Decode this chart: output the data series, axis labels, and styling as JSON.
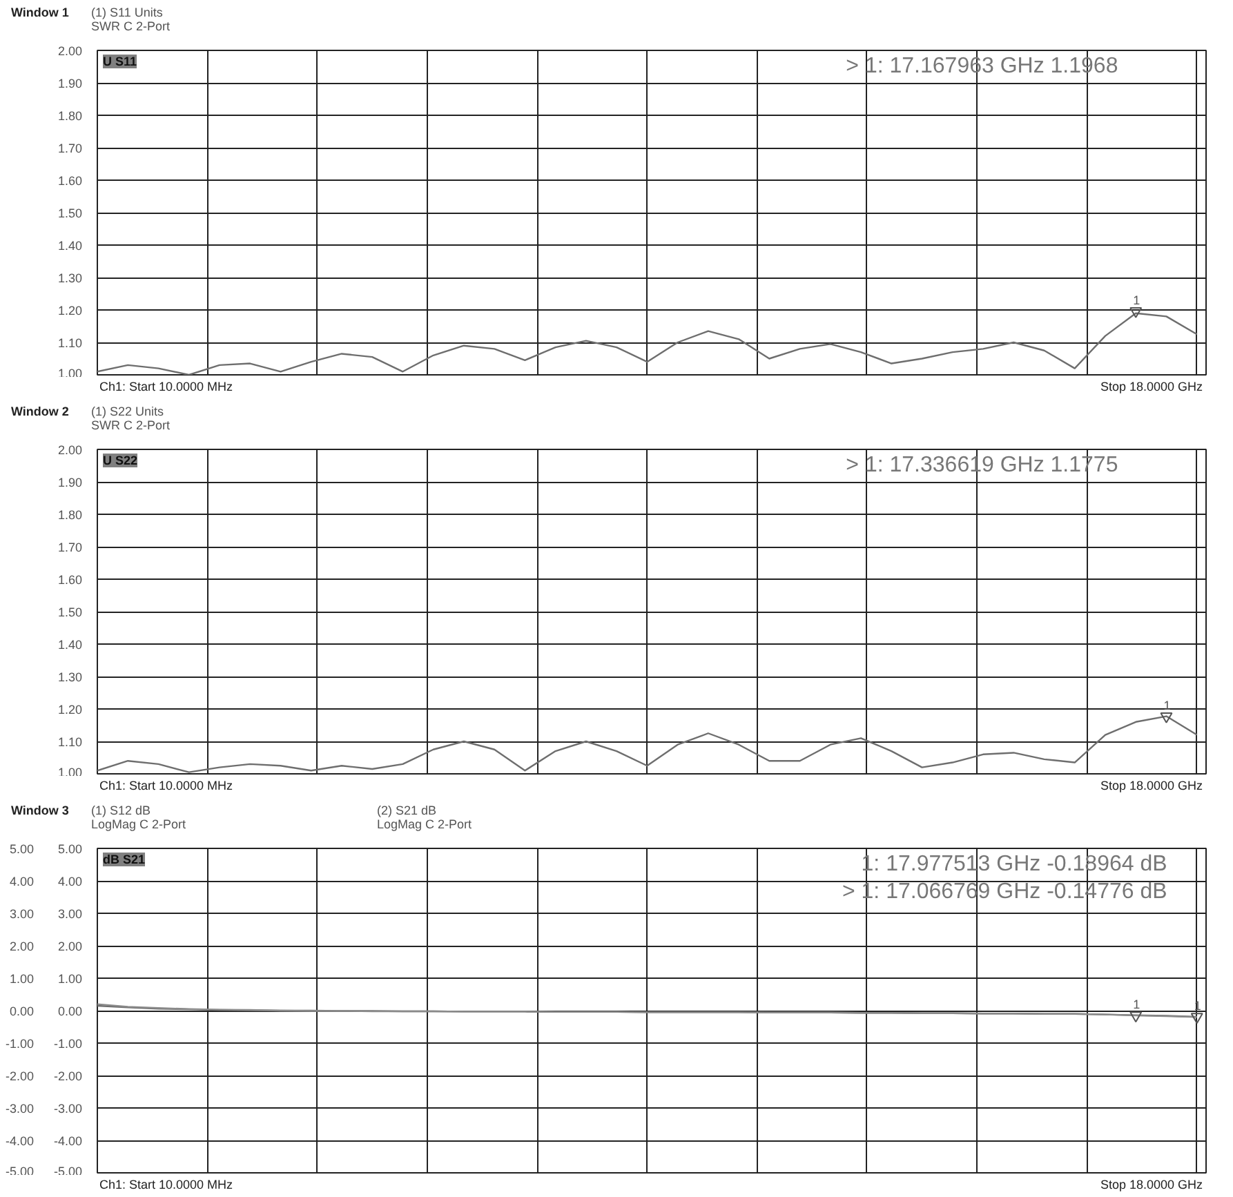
{
  "chart_data": [
    {
      "type": "line",
      "title": "Window 1",
      "subtitle": "(1) S11 Units\nSWR C  2-Port",
      "ylim": [
        1.0,
        2.0
      ],
      "tick_labels": "y",
      "grid": true,
      "categories": [
        null,
        null,
        null,
        null,
        null,
        null,
        null,
        null,
        null,
        null,
        null,
        null,
        null,
        null,
        null,
        null,
        null,
        null,
        null,
        null,
        null,
        null,
        null,
        null,
        null,
        null,
        null,
        null,
        null,
        null,
        null,
        null,
        null,
        null,
        null,
        null,
        null
      ],
      "yticks": [
        {
          "value": 1.0,
          "label": "1.00"
        },
        {
          "value": 1.1,
          "label": "1.10"
        },
        {
          "value": 1.2,
          "label": "1.20"
        },
        {
          "value": 1.3,
          "label": "1.30"
        },
        {
          "value": 1.4,
          "label": "1.40"
        },
        {
          "value": 1.5,
          "label": "1.50"
        },
        {
          "value": 1.6,
          "label": "1.60"
        },
        {
          "value": 1.7,
          "label": "1.70"
        },
        {
          "value": 1.8,
          "label": "1.80"
        },
        {
          "value": 1.9,
          "label": "1.90"
        },
        {
          "value": 2.0,
          "label": "2.00"
        }
      ],
      "annotations": [
        "U S11",
        "> 1:     17.167963 GHz          1.1968",
        "Ch1: Start  10.0000 MHz",
        "Stop  18.0000 GHz"
      ],
      "series": [
        {
          "color": "#6e6e6e",
          "values": [
            1.01,
            1.03,
            1.02,
            1.0,
            1.03,
            1.035,
            1.01,
            1.04,
            1.065,
            1.055,
            1.01,
            1.06,
            1.09,
            1.08,
            1.045,
            1.085,
            1.105,
            1.085,
            1.04,
            1.1,
            1.135,
            1.11,
            1.05,
            1.08,
            1.095,
            1.07,
            1.035,
            1.05,
            1.07,
            1.08,
            1.1,
            1.075,
            1.02,
            1.12,
            1.19,
            1.18,
            1.125
          ]
        },
        {
          "type": "scatter",
          "marker": "triangle",
          "name": "1",
          "color": "#555555",
          "values": [
            null,
            null,
            null,
            null,
            null,
            null,
            null,
            null,
            null,
            null,
            null,
            null,
            null,
            null,
            null,
            null,
            null,
            null,
            null,
            null,
            null,
            null,
            null,
            null,
            null,
            null,
            null,
            null,
            null,
            null,
            null,
            null,
            null,
            null,
            1.1968,
            null,
            null
          ]
        }
      ]
    },
    {
      "type": "line",
      "title": "Window 2",
      "subtitle": "(1) S22 Units\nSWR C  2-Port",
      "ylim": [
        1.0,
        2.0
      ],
      "tick_labels": "y",
      "grid": true,
      "categories": [
        null,
        null,
        null,
        null,
        null,
        null,
        null,
        null,
        null,
        null,
        null,
        null,
        null,
        null,
        null,
        null,
        null,
        null,
        null,
        null,
        null,
        null,
        null,
        null,
        null,
        null,
        null,
        null,
        null,
        null,
        null,
        null,
        null,
        null,
        null,
        null,
        null
      ],
      "yticks": [
        {
          "value": 1.0,
          "label": "1.00"
        },
        {
          "value": 1.1,
          "label": "1.10"
        },
        {
          "value": 1.2,
          "label": "1.20"
        },
        {
          "value": 1.3,
          "label": "1.30"
        },
        {
          "value": 1.4,
          "label": "1.40"
        },
        {
          "value": 1.5,
          "label": "1.50"
        },
        {
          "value": 1.6,
          "label": "1.60"
        },
        {
          "value": 1.7,
          "label": "1.70"
        },
        {
          "value": 1.8,
          "label": "1.80"
        },
        {
          "value": 1.9,
          "label": "1.90"
        },
        {
          "value": 2.0,
          "label": "2.00"
        }
      ],
      "annotations": [
        "U S22",
        "> 1:     17.336619 GHz          1.1775",
        "Ch1: Start  10.0000 MHz",
        "Stop  18.0000 GHz"
      ],
      "series": [
        {
          "color": "#6e6e6e",
          "values": [
            1.01,
            1.04,
            1.03,
            1.005,
            1.02,
            1.03,
            1.025,
            1.01,
            1.025,
            1.015,
            1.03,
            1.075,
            1.1,
            1.075,
            1.01,
            1.07,
            1.1,
            1.07,
            1.025,
            1.09,
            1.125,
            1.09,
            1.04,
            1.04,
            1.09,
            1.11,
            1.07,
            1.02,
            1.035,
            1.06,
            1.065,
            1.045,
            1.035,
            1.12,
            1.16,
            1.1775,
            1.12
          ]
        },
        {
          "type": "scatter",
          "marker": "triangle",
          "name": "1",
          "color": "#555555",
          "values": [
            null,
            null,
            null,
            null,
            null,
            null,
            null,
            null,
            null,
            null,
            null,
            null,
            null,
            null,
            null,
            null,
            null,
            null,
            null,
            null,
            null,
            null,
            null,
            null,
            null,
            null,
            null,
            null,
            null,
            null,
            null,
            null,
            null,
            null,
            null,
            1.1775,
            null
          ]
        }
      ]
    },
    {
      "type": "line",
      "title": "Window 3",
      "subtitle": "(1) S12 dB\nLogMag C  2-Port",
      "y2label": "(2) S21 dB\nLogMag C  2-Port",
      "ylim": [
        -5,
        5
      ],
      "y2lim": [
        -5,
        5
      ],
      "tick_labels": "y",
      "grid": true,
      "categories": [
        null,
        null,
        null,
        null,
        null,
        null,
        null,
        null,
        null,
        null,
        null,
        null,
        null,
        null,
        null,
        null,
        null,
        null,
        null,
        null,
        null,
        null,
        null,
        null,
        null,
        null,
        null,
        null,
        null,
        null,
        null,
        null,
        null,
        null,
        null,
        null,
        null
      ],
      "yticks": [
        {
          "value": -5,
          "label": "-5.00"
        },
        {
          "value": -4,
          "label": "-4.00"
        },
        {
          "value": -3,
          "label": "-3.00"
        },
        {
          "value": -2,
          "label": "-2.00"
        },
        {
          "value": -1,
          "label": "-1.00"
        },
        {
          "value": 0,
          "label": "0.00"
        },
        {
          "value": 1,
          "label": "1.00"
        },
        {
          "value": 2,
          "label": "2.00"
        },
        {
          "value": 3,
          "label": "3.00"
        },
        {
          "value": 4,
          "label": "4.00"
        },
        {
          "value": 5,
          "label": "5.00"
        }
      ],
      "y2ticks": [
        {
          "value": -5,
          "label": "-5.00"
        },
        {
          "value": -4,
          "label": "-4.00"
        },
        {
          "value": -3,
          "label": "-3.00"
        },
        {
          "value": -2,
          "label": "-2.00"
        },
        {
          "value": -1,
          "label": "-1.00"
        },
        {
          "value": 0,
          "label": "0.00"
        },
        {
          "value": 1,
          "label": "1.00"
        },
        {
          "value": 2,
          "label": "2.00"
        },
        {
          "value": 3,
          "label": "3.00"
        },
        {
          "value": 4,
          "label": "4.00"
        },
        {
          "value": 5,
          "label": "5.00"
        }
      ],
      "annotations": [
        "dB S21",
        "1:     17.977513 GHz  -0.18964 dB",
        "> 1:     17.066769 GHz  -0.14776 dB",
        "Ch1: Start  10.0000 MHz",
        "Stop  18.0000 GHz"
      ],
      "series": [
        {
          "color": "#6e6e6e",
          "values": [
            0.15,
            0.1,
            0.06,
            0.04,
            0.02,
            0.01,
            0.0,
            0.0,
            -0.01,
            -0.01,
            -0.02,
            -0.02,
            -0.03,
            -0.03,
            -0.03,
            -0.04,
            -0.04,
            -0.04,
            -0.05,
            -0.05,
            -0.05,
            -0.05,
            -0.06,
            -0.06,
            -0.06,
            -0.07,
            -0.07,
            -0.08,
            -0.08,
            -0.09,
            -0.09,
            -0.1,
            -0.1,
            -0.12,
            -0.14,
            -0.16,
            -0.19
          ]
        },
        {
          "color": "#8a8a8a",
          "values": [
            0.2,
            0.12,
            0.08,
            0.05,
            0.03,
            0.02,
            0.0,
            -0.01,
            -0.01,
            -0.02,
            -0.02,
            -0.02,
            -0.03,
            -0.03,
            -0.03,
            -0.04,
            -0.04,
            -0.04,
            -0.05,
            -0.05,
            -0.05,
            -0.05,
            -0.06,
            -0.06,
            -0.06,
            -0.07,
            -0.07,
            -0.08,
            -0.08,
            -0.09,
            -0.09,
            -0.1,
            -0.1,
            -0.12,
            -0.15,
            -0.17,
            -0.2
          ]
        },
        {
          "type": "scatter",
          "marker": "triangle",
          "name": "1",
          "color": "#555555",
          "values": [
            null,
            null,
            null,
            null,
            null,
            null,
            null,
            null,
            null,
            null,
            null,
            null,
            null,
            null,
            null,
            null,
            null,
            null,
            null,
            null,
            null,
            null,
            null,
            null,
            null,
            null,
            null,
            null,
            null,
            null,
            null,
            null,
            null,
            null,
            null,
            null,
            -0.18964
          ]
        },
        {
          "type": "scatter",
          "marker": "triangle",
          "name": "1",
          "color": "#555555",
          "values": [
            null,
            null,
            null,
            null,
            null,
            null,
            null,
            null,
            null,
            null,
            null,
            null,
            null,
            null,
            null,
            null,
            null,
            null,
            null,
            null,
            null,
            null,
            null,
            null,
            null,
            null,
            null,
            null,
            null,
            null,
            null,
            null,
            null,
            null,
            -0.14776,
            null,
            null
          ]
        }
      ]
    }
  ]
}
